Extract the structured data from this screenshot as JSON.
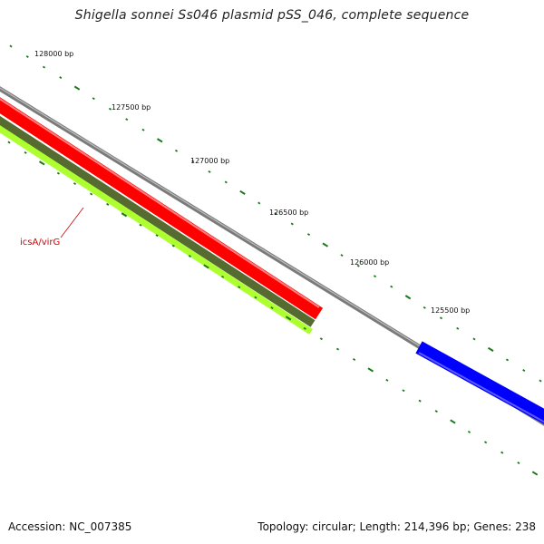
{
  "title": "Shigella sonnei Ss046 plasmid pSS_046, complete sequence",
  "accession": "Accession: NC_007385",
  "summary": "Topology: circular; Length: 214,396 bp; Genes: 238",
  "scale_labels": [
    "128000 bp",
    "127500 bp",
    "127000 bp",
    "126500 bp",
    "126000 bp",
    "125500 bp"
  ],
  "gene_label": "icsA/virG",
  "colors": {
    "backbone": "#808080",
    "forward_cds": "#ff0000",
    "reverse_cds": "#0000ff",
    "gc_dark": "#556b2f",
    "gc_light": "#adff2f",
    "ticks": "#1a7a1a",
    "label_text": "#d40000"
  }
}
